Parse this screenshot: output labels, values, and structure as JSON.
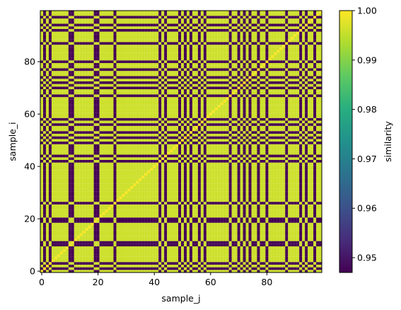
{
  "chart_data": {
    "type": "heatmap",
    "xlabel": "sample_j",
    "ylabel": "sample_i",
    "colorbar_label": "similarity",
    "n": 100,
    "xlim": [
      -0.5,
      99.5
    ],
    "ylim": [
      -0.5,
      99.5
    ],
    "origin": "lower",
    "colormap": "viridis",
    "vmin": 0.947,
    "vmax": 1.0,
    "x_ticks": [
      0,
      20,
      40,
      60,
      80
    ],
    "x_tick_labels": [
      "0",
      "20",
      "40",
      "60",
      "80"
    ],
    "y_ticks": [
      0,
      20,
      40,
      60,
      80
    ],
    "y_tick_labels": [
      "0",
      "20",
      "40",
      "60",
      "80"
    ],
    "colorbar_ticks": [
      0.95,
      0.96,
      0.97,
      0.98,
      0.99,
      1.0
    ],
    "colorbar_tick_labels": [
      "0.95",
      "0.96",
      "0.97",
      "0.98",
      "0.99",
      "1.00"
    ],
    "cluster_b_indices": [
      1,
      3,
      10,
      11,
      19,
      20,
      26,
      42,
      44,
      49,
      51,
      53,
      56,
      58,
      67,
      70,
      72,
      74,
      77,
      80,
      87,
      92,
      94,
      97
    ],
    "same_cluster_value": 0.996,
    "cross_cluster_value": 0.947,
    "diagonal_value": 1.0,
    "grid": false,
    "legend": "none"
  }
}
